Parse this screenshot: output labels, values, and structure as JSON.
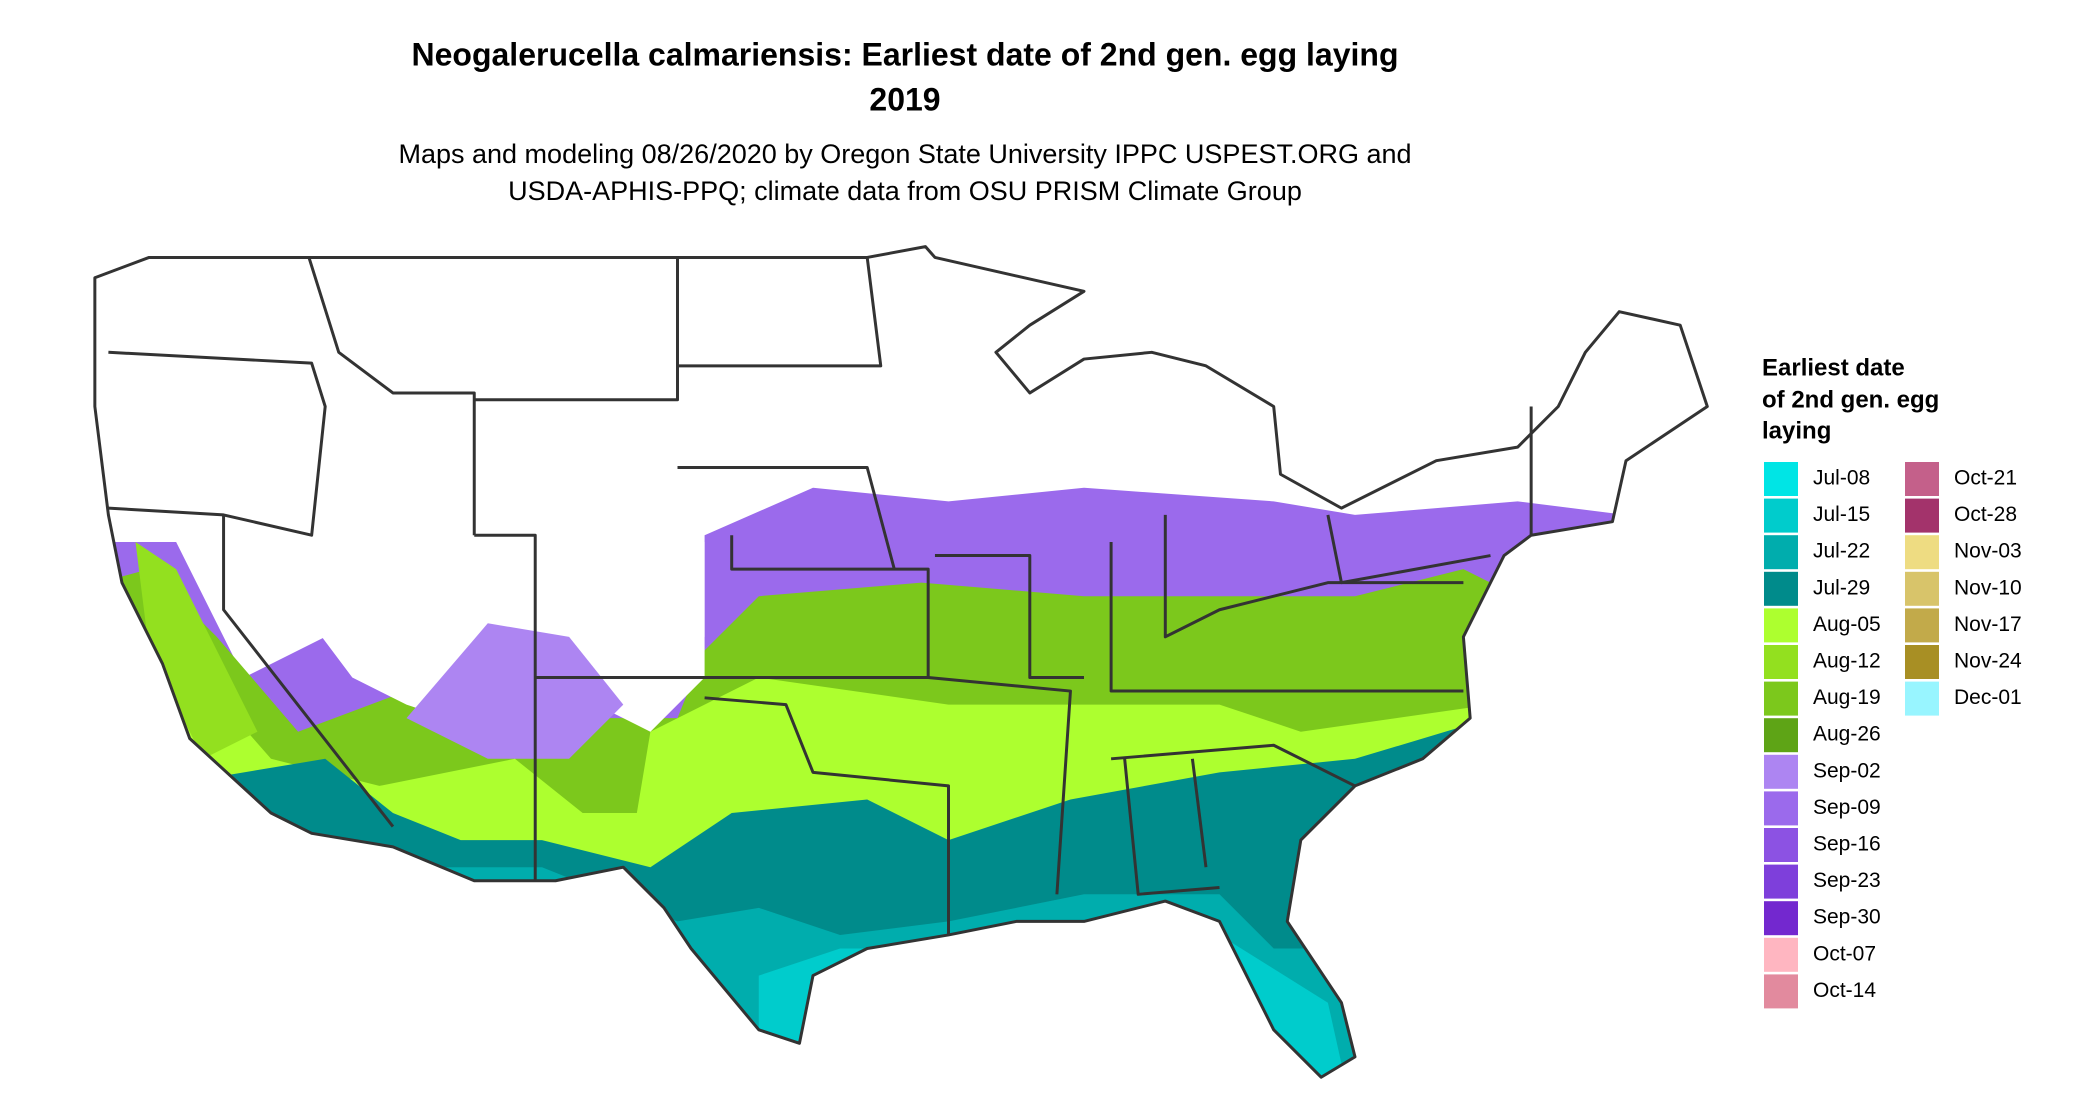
{
  "header": {
    "title": [
      "Neogalerucella calmariensis: Earliest date of 2nd gen. egg laying",
      "2019"
    ],
    "subtitle": [
      "Maps and modeling 08/26/2020 by Oregon State University IPPC USPEST.ORG and",
      "USDA-APHIS-PPQ; climate data from OSU PRISM Climate Group"
    ]
  },
  "legend": {
    "title": [
      "Earliest date",
      "of 2nd gen. egg",
      "laying"
    ],
    "items": [
      {
        "label": "Jul-08",
        "color": "#00e5e5"
      },
      {
        "label": "Jul-15",
        "color": "#00cccc"
      },
      {
        "label": "Jul-22",
        "color": "#00adad"
      },
      {
        "label": "Jul-29",
        "color": "#008b8b"
      },
      {
        "label": "Aug-05",
        "color": "#adff2f"
      },
      {
        "label": "Aug-12",
        "color": "#93e01f"
      },
      {
        "label": "Aug-19",
        "color": "#7cc81c"
      },
      {
        "label": "Aug-26",
        "color": "#5ea416"
      },
      {
        "label": "Sep-02",
        "color": "#ad85f2"
      },
      {
        "label": "Sep-09",
        "color": "#9b6aec"
      },
      {
        "label": "Sep-16",
        "color": "#8c52e3"
      },
      {
        "label": "Sep-23",
        "color": "#7e3fdb"
      },
      {
        "label": "Sep-30",
        "color": "#7328cf"
      },
      {
        "label": "Oct-07",
        "color": "#ffb6c1"
      },
      {
        "label": "Oct-14",
        "color": "#e28a9e"
      },
      {
        "label": "Oct-21",
        "color": "#c4608a"
      },
      {
        "label": "Oct-28",
        "color": "#a3336b"
      },
      {
        "label": "Nov-03",
        "color": "#eedc82"
      },
      {
        "label": "Nov-10",
        "color": "#d8c46a"
      },
      {
        "label": "Nov-17",
        "color": "#c2aa4a"
      },
      {
        "label": "Nov-24",
        "color": "#a88f24"
      },
      {
        "label": "Dec-01",
        "color": "#98f5ff"
      }
    ]
  }
}
